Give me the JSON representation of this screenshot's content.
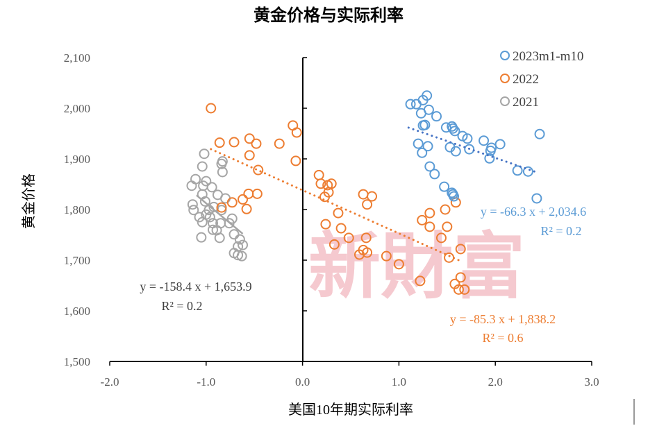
{
  "chart_data": {
    "type": "scatter",
    "title": "黄金价格与实际利率",
    "xlabel": "美国10年期实际利率",
    "ylabel": "黄金价格",
    "xlim": [
      -2.0,
      3.0
    ],
    "ylim": [
      1500,
      2100
    ],
    "x_ticks": [
      "-2.0",
      "-1.0",
      "0.0",
      "1.0",
      "2.0",
      "3.0"
    ],
    "y_ticks": [
      "1,500",
      "1,600",
      "1,700",
      "1,800",
      "1,900",
      "2,000",
      "2,100"
    ],
    "grid": false,
    "legend_position": "top-right",
    "watermark": "新財富",
    "series": [
      {
        "name": "2023m1-m10",
        "color": "#5b9bd5",
        "trendline": {
          "slope": -66.3,
          "intercept": 2034.6,
          "style": "dotted",
          "color": "#4472c4",
          "x_range": [
            1.1,
            2.45
          ]
        },
        "equation": "y = -66.3 x + 2,034.6",
        "r2": "R² = 0.2",
        "points": [
          [
            1.12,
            2008
          ],
          [
            1.18,
            2008
          ],
          [
            1.25,
            2016
          ],
          [
            1.29,
            2025
          ],
          [
            1.31,
            1997
          ],
          [
            1.23,
            1990
          ],
          [
            1.39,
            1984
          ],
          [
            1.25,
            1966
          ],
          [
            1.27,
            1967
          ],
          [
            1.49,
            1962
          ],
          [
            1.55,
            1964
          ],
          [
            1.56,
            1960
          ],
          [
            1.58,
            1955
          ],
          [
            1.66,
            1945
          ],
          [
            1.71,
            1940
          ],
          [
            1.88,
            1936
          ],
          [
            1.95,
            1916
          ],
          [
            1.96,
            1922
          ],
          [
            2.05,
            1929
          ],
          [
            1.2,
            1930
          ],
          [
            1.3,
            1925
          ],
          [
            1.24,
            1912
          ],
          [
            1.53,
            1923
          ],
          [
            1.59,
            1915
          ],
          [
            1.73,
            1919
          ],
          [
            1.94,
            1901
          ],
          [
            2.23,
            1877
          ],
          [
            2.34,
            1875
          ],
          [
            1.32,
            1885
          ],
          [
            1.37,
            1870
          ],
          [
            1.47,
            1845
          ],
          [
            1.56,
            1830
          ],
          [
            1.57,
            1826
          ],
          [
            1.55,
            1833
          ],
          [
            2.46,
            1949
          ],
          [
            2.43,
            1822
          ]
        ]
      },
      {
        "name": "2022",
        "color": "#ed7d31",
        "trendline": {
          "slope": -85.3,
          "intercept": 1838.2,
          "style": "dotted",
          "color": "#ed7d31",
          "x_range": [
            -0.95,
            1.65
          ]
        },
        "equation": "y = -85.3 x + 1,838.2",
        "r2": "R² = 0.6",
        "points": [
          [
            -0.95,
            2000
          ],
          [
            -0.86,
            1932
          ],
          [
            -0.71,
            1933
          ],
          [
            -0.55,
            1940
          ],
          [
            -0.48,
            1930
          ],
          [
            -0.24,
            1930
          ],
          [
            -0.1,
            1966
          ],
          [
            -0.06,
            1952
          ],
          [
            -0.07,
            1896
          ],
          [
            -0.55,
            1907
          ],
          [
            -0.46,
            1878
          ],
          [
            -0.56,
            1831
          ],
          [
            -0.47,
            1831
          ],
          [
            -0.73,
            1814
          ],
          [
            -0.62,
            1820
          ],
          [
            -0.58,
            1801
          ],
          [
            -0.84,
            1804
          ],
          [
            0.17,
            1868
          ],
          [
            0.19,
            1851
          ],
          [
            0.26,
            1848
          ],
          [
            0.3,
            1851
          ],
          [
            0.27,
            1834
          ],
          [
            0.23,
            1825
          ],
          [
            0.63,
            1830
          ],
          [
            0.72,
            1826
          ],
          [
            0.67,
            1810
          ],
          [
            0.37,
            1793
          ],
          [
            0.24,
            1771
          ],
          [
            0.4,
            1763
          ],
          [
            0.48,
            1744
          ],
          [
            0.66,
            1744
          ],
          [
            0.33,
            1731
          ],
          [
            0.59,
            1711
          ],
          [
            0.67,
            1715
          ],
          [
            0.63,
            1720
          ],
          [
            0.87,
            1708
          ],
          [
            1.0,
            1692
          ],
          [
            1.22,
            1659
          ],
          [
            1.24,
            1779
          ],
          [
            1.32,
            1793
          ],
          [
            1.32,
            1766
          ],
          [
            1.48,
            1800
          ],
          [
            1.5,
            1766
          ],
          [
            1.44,
            1744
          ],
          [
            1.59,
            1814
          ],
          [
            1.64,
            1722
          ],
          [
            1.52,
            1705
          ],
          [
            1.64,
            1666
          ],
          [
            1.58,
            1653
          ],
          [
            1.68,
            1642
          ],
          [
            1.62,
            1642
          ]
        ]
      },
      {
        "name": "2021",
        "color": "#a5a5a5",
        "trendline": {
          "slope": -158.4,
          "intercept": 1653.9,
          "style": "solid",
          "color": "#a5a5a5",
          "x_range": [
            -1.1,
            -0.62
          ]
        },
        "equation": "y = -158.4 x + 1,653.9",
        "r2": "R² = 0.2",
        "points": [
          [
            -1.02,
            1910
          ],
          [
            -1.04,
            1885
          ],
          [
            -0.83,
            1895
          ],
          [
            -0.84,
            1890
          ],
          [
            -0.83,
            1874
          ],
          [
            -1.11,
            1860
          ],
          [
            -1.15,
            1847
          ],
          [
            -1.0,
            1856
          ],
          [
            -1.03,
            1847
          ],
          [
            -0.94,
            1844
          ],
          [
            -0.88,
            1829
          ],
          [
            -0.8,
            1822
          ],
          [
            -1.04,
            1830
          ],
          [
            -1.14,
            1810
          ],
          [
            -1.13,
            1799
          ],
          [
            -1.01,
            1816
          ],
          [
            -0.97,
            1799
          ],
          [
            -0.84,
            1799
          ],
          [
            -1.07,
            1785
          ],
          [
            -0.96,
            1785
          ],
          [
            -1.04,
            1775
          ],
          [
            -0.93,
            1773
          ],
          [
            -0.85,
            1773
          ],
          [
            -0.73,
            1782
          ],
          [
            -0.76,
            1773
          ],
          [
            -0.93,
            1760
          ],
          [
            -0.89,
            1759
          ],
          [
            -1.05,
            1745
          ],
          [
            -0.86,
            1744
          ],
          [
            -0.71,
            1751
          ],
          [
            -0.65,
            1741
          ],
          [
            -0.62,
            1730
          ],
          [
            -0.67,
            1727
          ],
          [
            -0.71,
            1714
          ],
          [
            -0.67,
            1710
          ],
          [
            -0.63,
            1708
          ],
          [
            -1.0,
            1790
          ],
          [
            -0.92,
            1805
          ]
        ]
      }
    ]
  }
}
